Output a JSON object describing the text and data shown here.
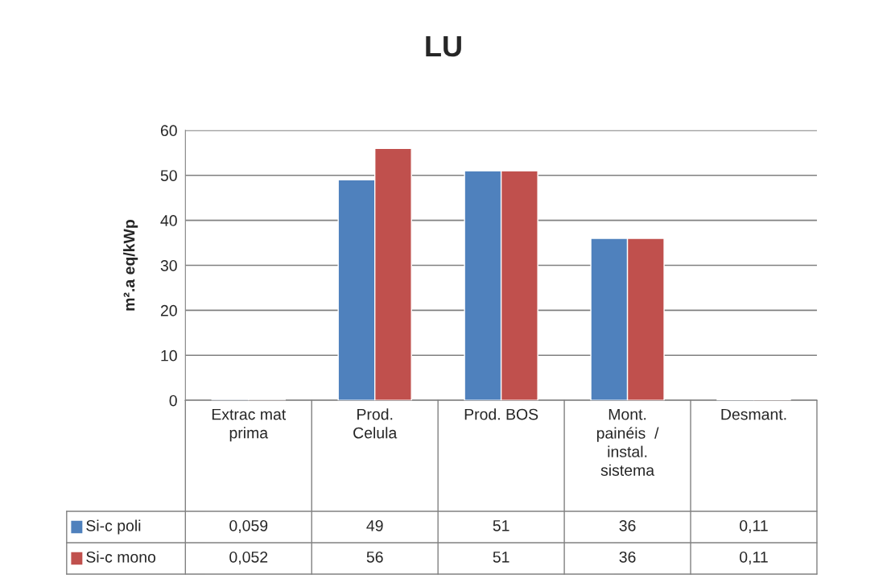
{
  "chart_data": {
    "type": "bar",
    "title": "LU",
    "ylabel": "m².a eq/kWp",
    "categories": [
      "Extrac mat\nprima",
      "Prod.\nCelula",
      "Prod. BOS",
      "Mont.\npainéis  /\ninstal.\nsistema",
      "Desmant."
    ],
    "series": [
      {
        "name": "Si-c poli",
        "color": "#4f81bd",
        "values": [
          0.059,
          49,
          51,
          36,
          0.11
        ],
        "value_labels": [
          "0,059",
          "49",
          "51",
          "36",
          "0,11"
        ]
      },
      {
        "name": "Si-c mono",
        "color": "#c0504d",
        "values": [
          0.052,
          56,
          51,
          36,
          0.11
        ],
        "value_labels": [
          "0,052",
          "56",
          "51",
          "36",
          "0,11"
        ]
      }
    ],
    "ylim": [
      0,
      60
    ],
    "yticks": [
      0,
      10,
      20,
      30,
      40,
      50,
      60
    ],
    "grid": "y",
    "legend": "bottom left"
  }
}
